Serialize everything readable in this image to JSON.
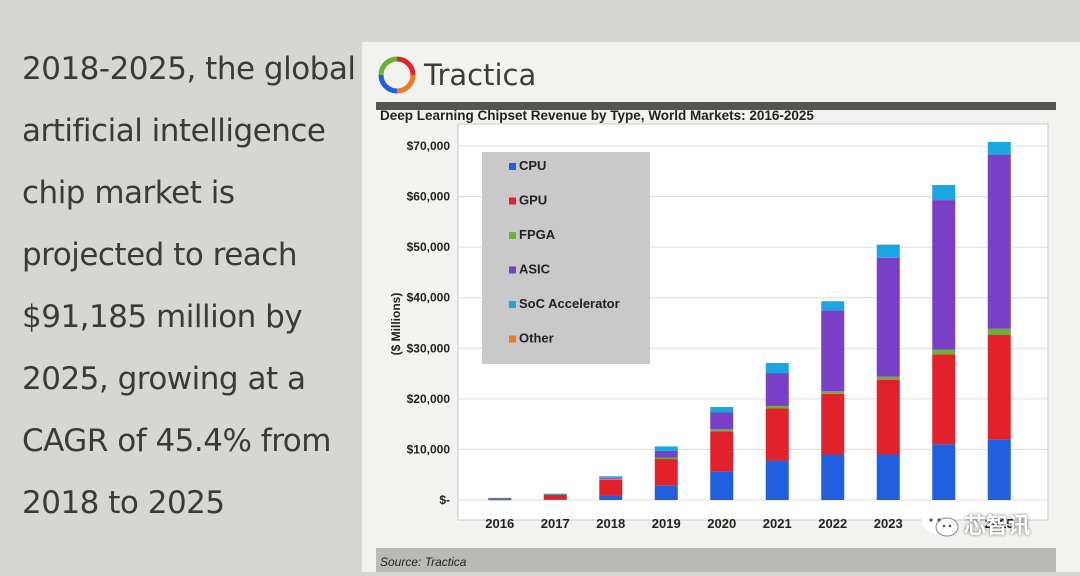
{
  "slide_text": [
    "2018-2025, the global",
    "artificial intelligence",
    "chip market is",
    "projected to reach",
    "$91,185 million by",
    "2025, growing at a",
    "CAGR of 45.4% from",
    "2018 to 2025"
  ],
  "logo_text": "Tractica",
  "source": "Source: Tractica",
  "watermark": "芯智讯",
  "chart_data": {
    "type": "bar",
    "stacked": true,
    "title": "Deep Learning Chipset Revenue by Type, World Markets: 2016-2025",
    "ylabel": "($ Millions)",
    "xlabel": "",
    "categories": [
      "2016",
      "2017",
      "2018",
      "2019",
      "2020",
      "2021",
      "2022",
      "2023",
      "2024",
      "2025"
    ],
    "x_tick_labels": [
      "2016",
      "2017",
      "2018",
      "2019",
      "2020",
      "2021",
      "2022",
      "2023",
      "",
      "2025"
    ],
    "ylim": [
      0,
      70000
    ],
    "y_ticks": [
      0,
      10000,
      20000,
      30000,
      40000,
      50000,
      60000,
      70000
    ],
    "y_tick_labels": [
      "$-",
      "$10,000",
      "$20,000",
      "$30,000",
      "$40,000",
      "$50,000",
      "$60,000",
      "$70,000"
    ],
    "grid": true,
    "legend_position": "top-left",
    "series": [
      {
        "name": "CPU",
        "color": "#1f5fe0",
        "values": [
          50,
          150,
          800,
          2900,
          5600,
          7800,
          9000,
          9000,
          11000,
          12000
        ]
      },
      {
        "name": "GPU",
        "color": "#e3212b",
        "values": [
          300,
          900,
          3200,
          5200,
          8000,
          10300,
          12000,
          14800,
          17800,
          20700
        ]
      },
      {
        "name": "FPGA",
        "color": "#6ab03a",
        "values": [
          20,
          50,
          200,
          300,
          400,
          500,
          500,
          600,
          900,
          1200
        ]
      },
      {
        "name": "ASIC",
        "color": "#7a3fc7",
        "values": [
          30,
          100,
          200,
          1300,
          3300,
          6500,
          16000,
          23500,
          29600,
          34400
        ]
      },
      {
        "name": "SoC Accelerator",
        "color": "#1aa7e0",
        "values": [
          10,
          40,
          300,
          900,
          1100,
          2000,
          1800,
          2600,
          3000,
          2500
        ]
      },
      {
        "name": "Other",
        "color": "#f07a20",
        "values": [
          0,
          0,
          0,
          0,
          0,
          0,
          0,
          0,
          0,
          0
        ]
      }
    ]
  }
}
